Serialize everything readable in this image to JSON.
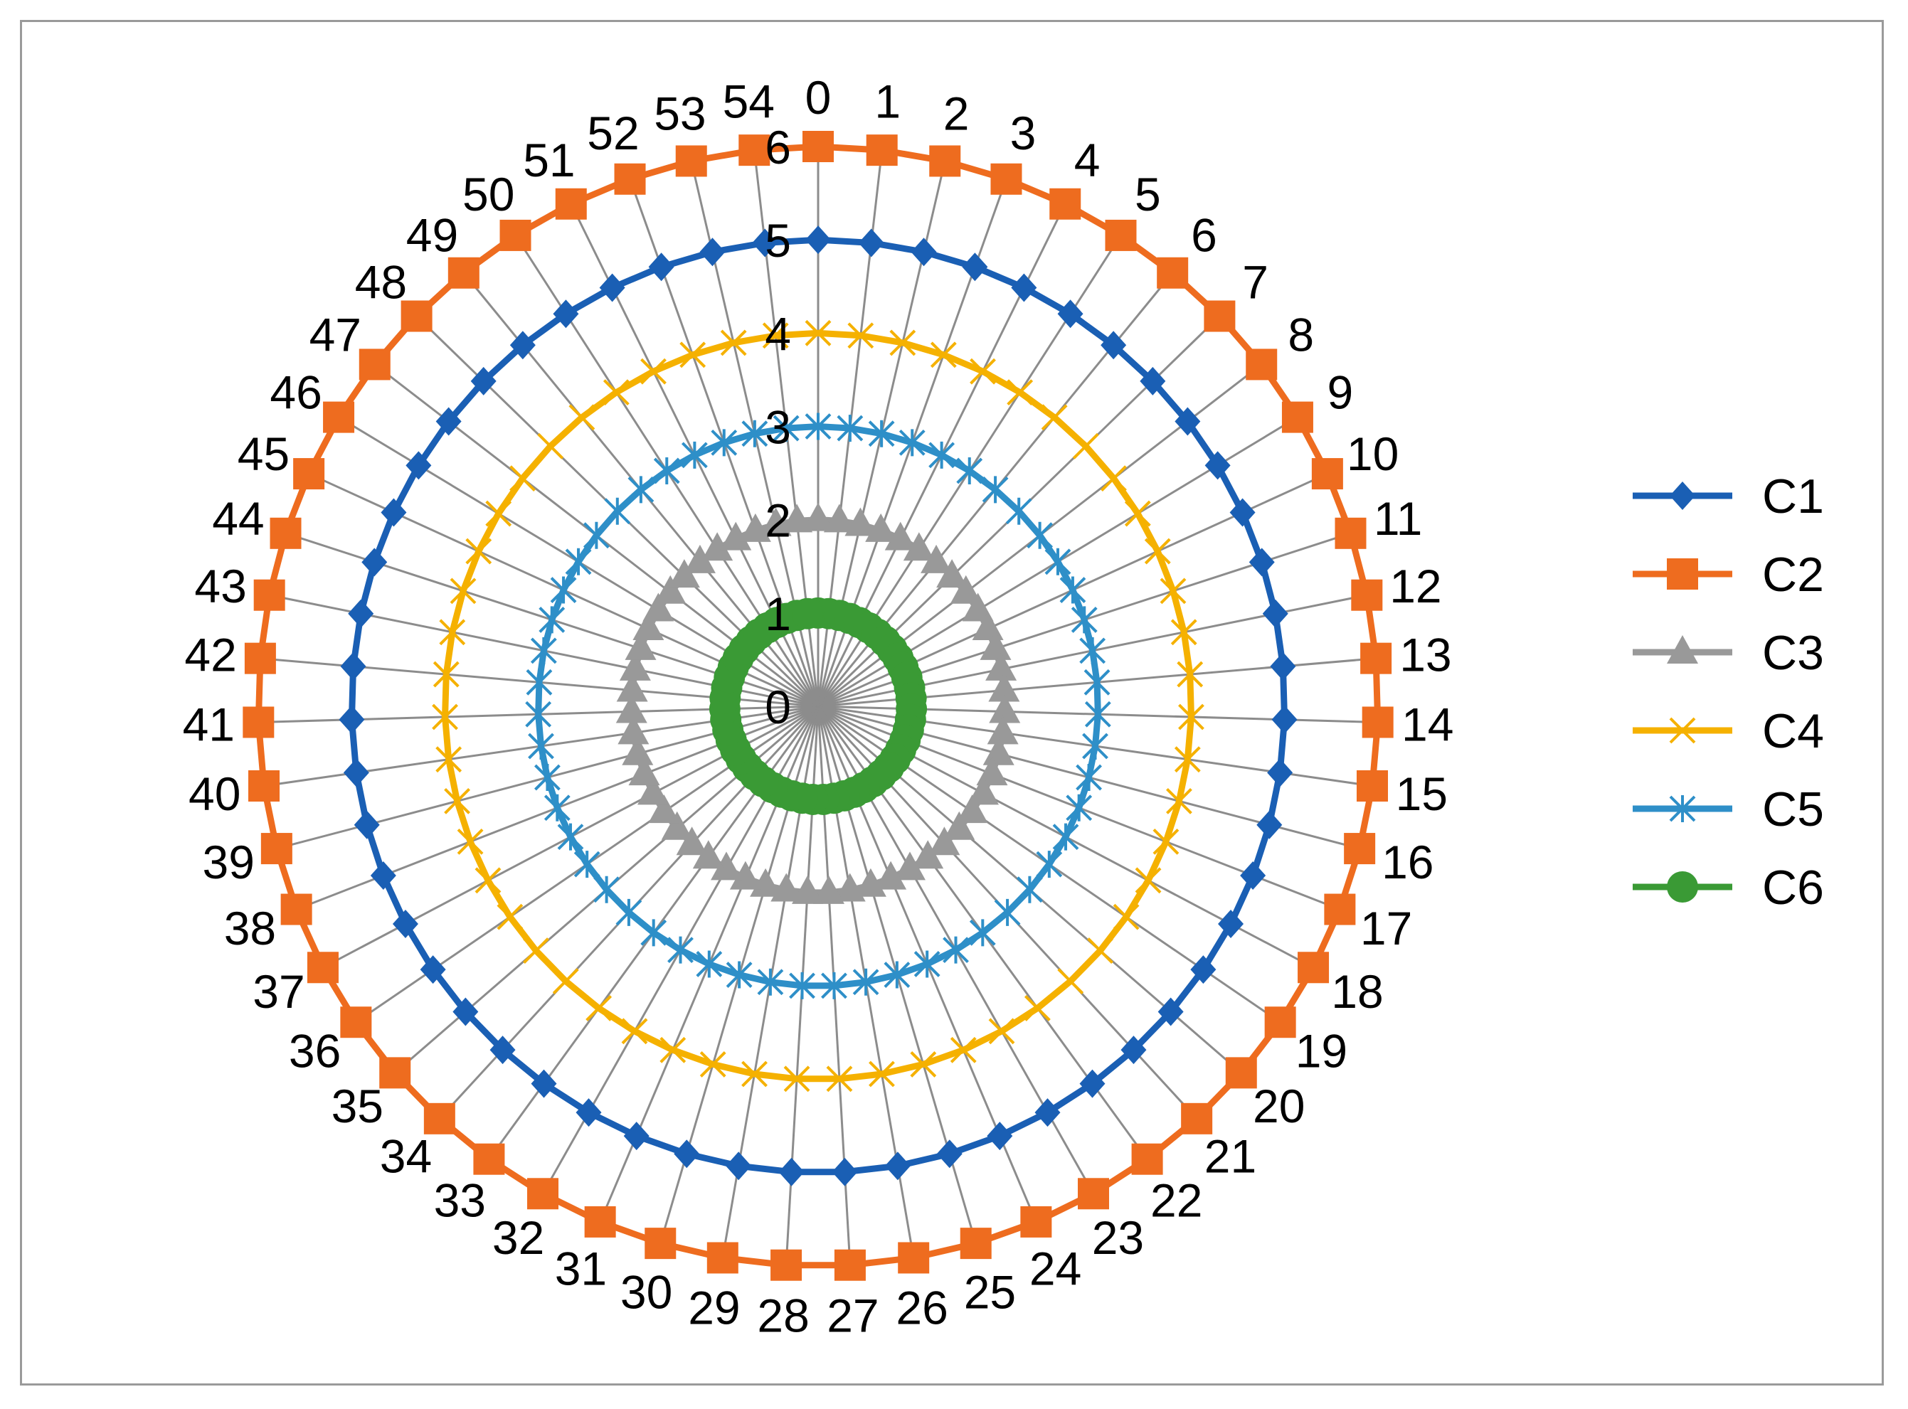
{
  "chart_data": {
    "type": "radar",
    "title": "",
    "categories": [
      "0",
      "1",
      "2",
      "3",
      "4",
      "5",
      "6",
      "7",
      "8",
      "9",
      "10",
      "11",
      "12",
      "13",
      "14",
      "15",
      "16",
      "17",
      "18",
      "19",
      "20",
      "21",
      "22",
      "23",
      "24",
      "25",
      "26",
      "27",
      "28",
      "29",
      "30",
      "31",
      "32",
      "33",
      "34",
      "35",
      "36",
      "37",
      "38",
      "39",
      "40",
      "41",
      "42",
      "43",
      "44",
      "45",
      "46",
      "47",
      "48",
      "49",
      "50",
      "51",
      "52",
      "53",
      "54"
    ],
    "radial_ticks": [
      "0",
      "1",
      "2",
      "3",
      "4",
      "5",
      "6"
    ],
    "rlim": [
      0,
      6
    ],
    "gridlines": true,
    "legend_position": "right",
    "series": [
      {
        "name": "C1",
        "marker": "diamond",
        "color": "#1a5fb4",
        "values": [
          5,
          5,
          5,
          5,
          5,
          5,
          5,
          5,
          5,
          5,
          5,
          5,
          5,
          5,
          5,
          5,
          5,
          5,
          5,
          5,
          5,
          5,
          5,
          5,
          5,
          5,
          5,
          5,
          5,
          5,
          5,
          5,
          5,
          5,
          5,
          5,
          5,
          5,
          5,
          5,
          5,
          5,
          5,
          5,
          5,
          5,
          5,
          5,
          5,
          5,
          5,
          5,
          5,
          5,
          5
        ]
      },
      {
        "name": "C2",
        "marker": "square",
        "color": "#ee6c1f",
        "values": [
          6,
          6,
          6,
          6,
          6,
          6,
          6,
          6,
          6,
          6,
          6,
          6,
          6,
          6,
          6,
          6,
          6,
          6,
          6,
          6,
          6,
          6,
          6,
          6,
          6,
          6,
          6,
          6,
          6,
          6,
          6,
          6,
          6,
          6,
          6,
          6,
          6,
          6,
          6,
          6,
          6,
          6,
          6,
          6,
          6,
          6,
          6,
          6,
          6,
          6,
          6,
          6,
          6,
          6,
          6
        ]
      },
      {
        "name": "C3",
        "marker": "triangle",
        "color": "#999999",
        "values": [
          2,
          2,
          2,
          2,
          2,
          2,
          2,
          2,
          2,
          2,
          2,
          2,
          2,
          2,
          2,
          2,
          2,
          2,
          2,
          2,
          2,
          2,
          2,
          2,
          2,
          2,
          2,
          2,
          2,
          2,
          2,
          2,
          2,
          2,
          2,
          2,
          2,
          2,
          2,
          2,
          2,
          2,
          2,
          2,
          2,
          2,
          2,
          2,
          2,
          2,
          2,
          2,
          2,
          2,
          2
        ]
      },
      {
        "name": "C4",
        "marker": "x",
        "color": "#f5b100",
        "values": [
          4,
          4,
          4,
          4,
          4,
          4,
          4,
          4,
          4,
          4,
          4,
          4,
          4,
          4,
          4,
          4,
          4,
          4,
          4,
          4,
          4,
          4,
          4,
          4,
          4,
          4,
          4,
          4,
          4,
          4,
          4,
          4,
          4,
          4,
          4,
          4,
          4,
          4,
          4,
          4,
          4,
          4,
          4,
          4,
          4,
          4,
          4,
          4,
          4,
          4,
          4,
          4,
          4,
          4,
          4
        ]
      },
      {
        "name": "C5",
        "marker": "star",
        "color": "#2e8fc8",
        "values": [
          3,
          3,
          3,
          3,
          3,
          3,
          3,
          3,
          3,
          3,
          3,
          3,
          3,
          3,
          3,
          3,
          3,
          3,
          3,
          3,
          3,
          3,
          3,
          3,
          3,
          3,
          3,
          3,
          3,
          3,
          3,
          3,
          3,
          3,
          3,
          3,
          3,
          3,
          3,
          3,
          3,
          3,
          3,
          3,
          3,
          3,
          3,
          3,
          3,
          3,
          3,
          3,
          3,
          3,
          3
        ]
      },
      {
        "name": "C6",
        "marker": "circle",
        "color": "#3a9a35",
        "values": [
          1,
          1,
          1,
          1,
          1,
          1,
          1,
          1,
          1,
          1,
          1,
          1,
          1,
          1,
          1,
          1,
          1,
          1,
          1,
          1,
          1,
          1,
          1,
          1,
          1,
          1,
          1,
          1,
          1,
          1,
          1,
          1,
          1,
          1,
          1,
          1,
          1,
          1,
          1,
          1,
          1,
          1,
          1,
          1,
          1,
          1,
          1,
          1,
          1,
          1,
          1,
          1,
          1,
          1,
          1
        ]
      }
    ]
  }
}
